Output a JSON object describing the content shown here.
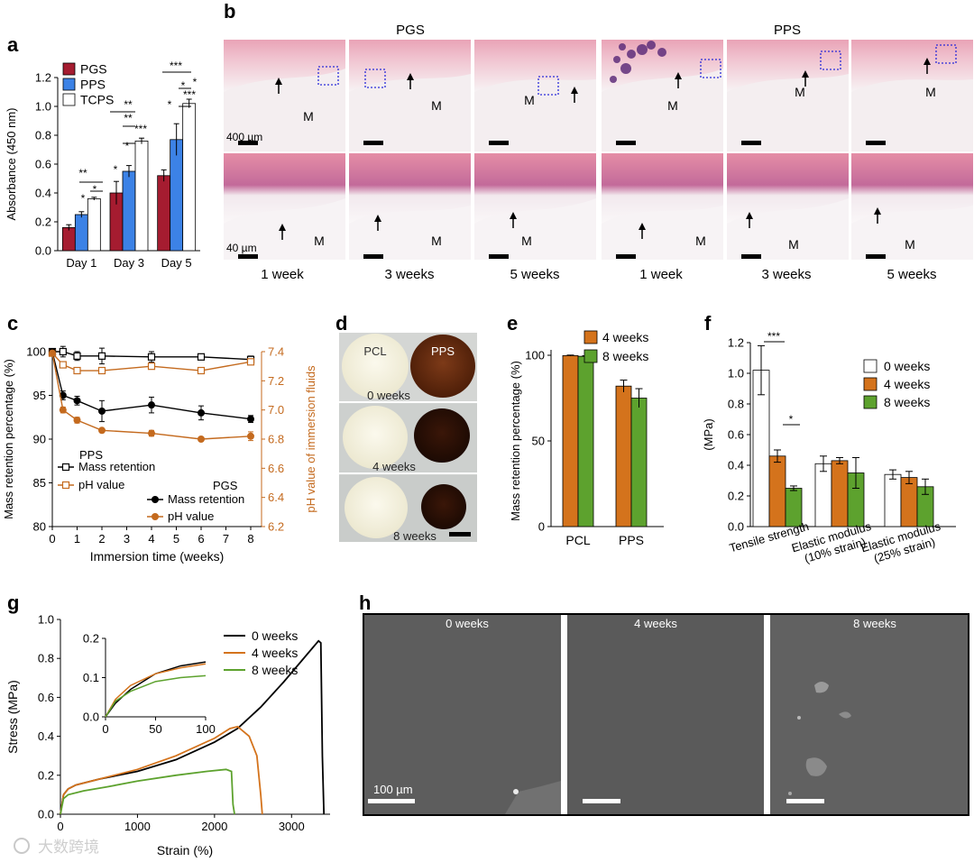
{
  "panels": {
    "a": "a",
    "b": "b",
    "c": "c",
    "d": "d",
    "e": "e",
    "f": "f",
    "g": "g",
    "h": "h"
  },
  "colors": {
    "pgs": "#a51c30",
    "pps": "#3c82e6",
    "tcps": "#ffffff",
    "w4": "#d4731c",
    "w8": "#5da22e",
    "w0": "#ffffff",
    "black": "#000000",
    "ph_axis": "#c46a1e",
    "sem_gray": "#5c5c5c"
  },
  "chart_data": [
    {
      "panel": "a",
      "type": "bar",
      "ylabel": "Absorbance (450 nm)",
      "ylim": [
        0,
        1.2
      ],
      "yticks": [
        0,
        0.2,
        0.4,
        0.6,
        0.8,
        1.0,
        1.2
      ],
      "ytick_labels": [
        "0.0",
        "0.2",
        "0.4",
        "0.6",
        "0.8",
        "1.0",
        "1.2"
      ],
      "categories": [
        "Day 1",
        "Day 3",
        "Day 5"
      ],
      "series": [
        {
          "name": "PGS",
          "values": [
            0.16,
            0.4,
            0.52
          ],
          "errors": [
            0.02,
            0.08,
            0.04
          ]
        },
        {
          "name": "PPS",
          "values": [
            0.25,
            0.55,
            0.77
          ],
          "errors": [
            0.02,
            0.04,
            0.11
          ]
        },
        {
          "name": "TCPS",
          "values": [
            0.36,
            0.76,
            1.02
          ],
          "errors": [
            0.01,
            0.02,
            0.03
          ]
        }
      ],
      "significance": [
        "*",
        "*",
        "**",
        "*",
        "*",
        "**",
        "***",
        "**",
        "*",
        "*",
        "***",
        "*",
        "***"
      ]
    },
    {
      "panel": "c",
      "type": "line",
      "xlabel": "Immersion time (weeks)",
      "xlim": [
        0,
        8
      ],
      "xticks": [
        0,
        1,
        2,
        3,
        4,
        5,
        6,
        7,
        8
      ],
      "ylabel": "Mass retention percentage (%)",
      "ylim": [
        80,
        100
      ],
      "yticks": [
        80,
        85,
        90,
        95,
        100
      ],
      "y2label": "pH value of immersion fluids",
      "y2lim": [
        6.2,
        7.4
      ],
      "y2ticks": [
        "6.2",
        "6.4",
        "6.6",
        "6.8",
        "7.0",
        "7.2",
        "7.4"
      ],
      "series": [
        {
          "name": "PPS Mass retention",
          "x": [
            0,
            0.43,
            1,
            2,
            4,
            6,
            8
          ],
          "y": [
            100,
            100,
            99.5,
            99.5,
            99.4,
            99.4,
            99.1
          ],
          "err": [
            0.3,
            0.6,
            0.5,
            0.9,
            0.6,
            0.3,
            0.4
          ],
          "axis": "left"
        },
        {
          "name": "PPS pH value",
          "x": [
            0,
            0.43,
            1,
            2,
            4,
            6,
            8
          ],
          "y": [
            7.39,
            7.31,
            7.27,
            7.27,
            7.3,
            7.27,
            7.33
          ],
          "err": [
            0,
            0.02,
            0.01,
            0.01,
            0.02,
            0.01,
            0.02
          ],
          "axis": "right"
        },
        {
          "name": "PGS Mass retention",
          "x": [
            0,
            0.43,
            1,
            2,
            4,
            6,
            8
          ],
          "y": [
            100,
            95,
            94.4,
            93.2,
            93.9,
            93,
            92.3
          ],
          "err": [
            0.3,
            0.5,
            0.5,
            1.2,
            0.9,
            0.8,
            0.4
          ],
          "axis": "left"
        },
        {
          "name": "PGS pH value",
          "x": [
            0,
            0.43,
            1,
            2,
            4,
            6,
            8
          ],
          "y": [
            7.39,
            7.0,
            6.93,
            6.86,
            6.84,
            6.8,
            6.82
          ],
          "err": [
            0,
            0.02,
            0.02,
            0.01,
            0.02,
            0.01,
            0.03
          ],
          "axis": "right"
        }
      ],
      "legend_pps_title": "PPS",
      "legend_pgs_title": "PGS",
      "legend_mass": "Mass retention",
      "legend_ph": "pH value"
    },
    {
      "panel": "e",
      "type": "bar",
      "ylabel": "Mass retention percentage (%)",
      "ylim": [
        0,
        100
      ],
      "yticks": [
        0,
        50,
        100
      ],
      "categories": [
        "PCL",
        "PPS"
      ],
      "series": [
        {
          "name": "4 weeks",
          "values": [
            99.8,
            82
          ],
          "errors": [
            0.3,
            3.5
          ]
        },
        {
          "name": "8 weeks",
          "values": [
            99.4,
            75
          ],
          "errors": [
            0.3,
            5.5
          ]
        }
      ]
    },
    {
      "panel": "f",
      "type": "bar",
      "ylabel": "(MPa)",
      "ylim": [
        0,
        1.2
      ],
      "yticks": [
        "0.0",
        "0.2",
        "0.4",
        "0.6",
        "0.8",
        "1.0",
        "1.2"
      ],
      "categories": [
        "Tensile strength",
        "Elastic modulus (10% strain)",
        "Elastic modulus (25% strain)"
      ],
      "category_lines": [
        [
          "Tensile strength"
        ],
        [
          "Elastic modulus",
          "(10% strain)"
        ],
        [
          "Elastic modulus",
          "(25% strain)"
        ]
      ],
      "series": [
        {
          "name": "0 weeks",
          "values": [
            1.02,
            0.41,
            0.34
          ],
          "errors": [
            0.16,
            0.05,
            0.03
          ]
        },
        {
          "name": "4 weeks",
          "values": [
            0.46,
            0.43,
            0.32
          ],
          "errors": [
            0.04,
            0.02,
            0.04
          ]
        },
        {
          "name": "8 weeks",
          "values": [
            0.25,
            0.35,
            0.26
          ],
          "errors": [
            0.015,
            0.1,
            0.05
          ]
        }
      ],
      "significance": [
        "***",
        "*"
      ]
    },
    {
      "panel": "g",
      "type": "line",
      "xlabel": "Strain (%)",
      "xlim": [
        0,
        3500
      ],
      "xticks": [
        "0",
        "1000",
        "2000",
        "3000"
      ],
      "ylabel": "Stress (MPa)",
      "ylim": [
        0,
        1.0
      ],
      "yticks": [
        "0.0",
        "0.2",
        "0.4",
        "0.6",
        "0.8",
        "1.0"
      ],
      "series": [
        {
          "name": "0 weeks",
          "x": [
            0,
            40,
            100,
            200,
            500,
            1000,
            1500,
            2000,
            2300,
            2600,
            2900,
            3200,
            3350,
            3380,
            3400,
            3420
          ],
          "y": [
            0,
            0.1,
            0.13,
            0.15,
            0.18,
            0.22,
            0.28,
            0.37,
            0.44,
            0.55,
            0.68,
            0.82,
            0.89,
            0.88,
            0.3,
            0
          ]
        },
        {
          "name": "4 weeks",
          "x": [
            0,
            40,
            100,
            200,
            500,
            1000,
            1500,
            2000,
            2200,
            2300,
            2450,
            2550,
            2600,
            2620
          ],
          "y": [
            0,
            0.1,
            0.13,
            0.15,
            0.18,
            0.23,
            0.3,
            0.39,
            0.44,
            0.45,
            0.4,
            0.3,
            0.1,
            0
          ]
        },
        {
          "name": "8 weeks",
          "x": [
            0,
            40,
            100,
            300,
            600,
            1000,
            1500,
            1900,
            2150,
            2220,
            2240,
            2260
          ],
          "y": [
            0,
            0.08,
            0.1,
            0.12,
            0.14,
            0.17,
            0.2,
            0.22,
            0.23,
            0.22,
            0.05,
            0
          ]
        }
      ],
      "inset": {
        "xlim": [
          0,
          100
        ],
        "xticks": [
          "0",
          "50",
          "100"
        ],
        "ylim": [
          0,
          0.2
        ],
        "yticks": [
          "0.0",
          "0.1",
          "0.2"
        ],
        "series": [
          {
            "name": "0 weeks",
            "x": [
              0,
              10,
              25,
              50,
              75,
              100
            ],
            "y": [
              0,
              0.035,
              0.07,
              0.11,
              0.13,
              0.14
            ]
          },
          {
            "name": "4 weeks",
            "x": [
              0,
              10,
              25,
              50,
              75,
              100
            ],
            "y": [
              0,
              0.045,
              0.08,
              0.11,
              0.125,
              0.135
            ]
          },
          {
            "name": "8 weeks",
            "x": [
              0,
              10,
              25,
              50,
              75,
              100
            ],
            "y": [
              0,
              0.04,
              0.065,
              0.09,
              0.1,
              0.105
            ]
          }
        ]
      }
    }
  ],
  "histology": {
    "group_pgs": "PGS",
    "group_pps": "PPS",
    "tile_label": "M",
    "scale_top": "400 µm",
    "scale_bottom": "40 µm",
    "time_labels": [
      "1 week",
      "3 weeks",
      "5 weeks",
      "1 week",
      "3 weeks",
      "5 weeks"
    ]
  },
  "photos": {
    "pcl": "PCL",
    "pps": "PPS",
    "rows": [
      "0 weeks",
      "4 weeks",
      "8 weeks"
    ]
  },
  "sem": {
    "labels": [
      "0 weeks",
      "4 weeks",
      "8 weeks"
    ],
    "scale": "100 µm"
  },
  "watermark": "大数跨境"
}
